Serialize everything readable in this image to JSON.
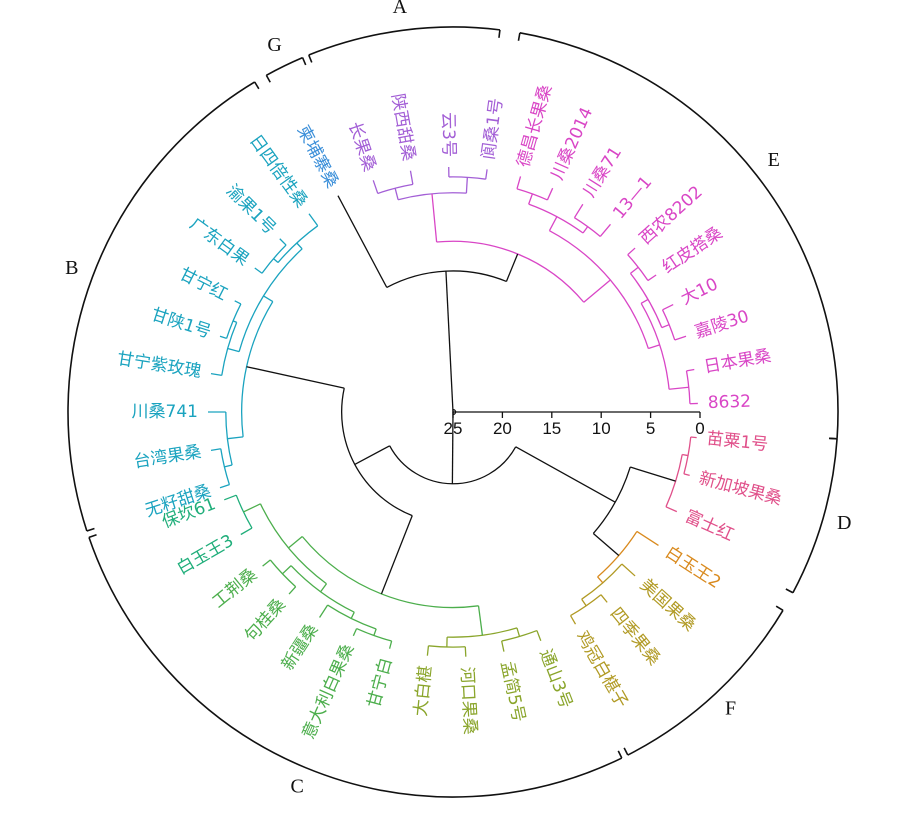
{
  "scale_axis": {
    "ticks": [
      "25",
      "20",
      "15",
      "10",
      "5",
      "0"
    ]
  },
  "groups": [
    {
      "key": "A",
      "label": "A"
    },
    {
      "key": "E",
      "label": "E"
    },
    {
      "key": "D",
      "label": "D"
    },
    {
      "key": "F",
      "label": "F"
    },
    {
      "key": "C",
      "label": "C"
    },
    {
      "key": "B",
      "label": "B"
    },
    {
      "key": "G",
      "label": "G"
    }
  ],
  "colors": {
    "A": "#a35fd6",
    "E": "#d946c6",
    "D": "#e0508a",
    "F_top": "#d98a1e",
    "F": "#b19a24",
    "C_olive": "#8aa52b",
    "C_green": "#4cae4c",
    "C_teal": "#1fae7a",
    "B": "#1aa3bf",
    "G": "#3b8fd9",
    "root": "#111111"
  },
  "leaves": [
    {
      "label": "8632",
      "color": "#d946c6"
    },
    {
      "label": "日本果桑",
      "color": "#d946c6"
    },
    {
      "label": "嘉陵30",
      "color": "#d946c6"
    },
    {
      "label": "大10",
      "color": "#d946c6"
    },
    {
      "label": "红皮搭桑",
      "color": "#d946c6"
    },
    {
      "label": "西农8202",
      "color": "#d946c6"
    },
    {
      "label": "13—1",
      "color": "#d946c6"
    },
    {
      "label": "川桑71",
      "color": "#d946c6"
    },
    {
      "label": "川桑2014",
      "color": "#d946c6"
    },
    {
      "label": "德昌长果桑",
      "color": "#d946c6"
    },
    {
      "label": "阆桑1号",
      "color": "#a35fd6"
    },
    {
      "label": "云3号",
      "color": "#a35fd6"
    },
    {
      "label": "陕西甜桑",
      "color": "#a35fd6"
    },
    {
      "label": "长果桑",
      "color": "#a35fd6"
    },
    {
      "label": "柬埔寨桑",
      "color": "#3b8fd9"
    },
    {
      "label": "日四倍性桑",
      "color": "#1aa3bf"
    },
    {
      "label": "渝果1号",
      "color": "#1aa3bf"
    },
    {
      "label": "广东白果",
      "color": "#1aa3bf"
    },
    {
      "label": "甘宁红",
      "color": "#1aa3bf"
    },
    {
      "label": "甘陕1号",
      "color": "#1aa3bf"
    },
    {
      "label": "甘宁紫玫瑰",
      "color": "#1aa3bf"
    },
    {
      "label": "川桑741",
      "color": "#1aa3bf"
    },
    {
      "label": "台湾果桑",
      "color": "#1aa3bf"
    },
    {
      "label": "无籽甜桑",
      "color": "#1aa3bf"
    },
    {
      "label": "保坎61",
      "color": "#1fae7a"
    },
    {
      "label": "白玉王3",
      "color": "#1fae7a"
    },
    {
      "label": "工荆桑",
      "color": "#4cae4c"
    },
    {
      "label": "句桂桑",
      "color": "#4cae4c"
    },
    {
      "label": "新疆桑",
      "color": "#4cae4c"
    },
    {
      "label": "意大利白果桑",
      "color": "#4cae4c"
    },
    {
      "label": "甘宁白",
      "color": "#4cae4c"
    },
    {
      "label": "大白椹",
      "color": "#8aa52b"
    },
    {
      "label": "河口果桑",
      "color": "#8aa52b"
    },
    {
      "label": "孟简5号",
      "color": "#8aa52b"
    },
    {
      "label": "通山3号",
      "color": "#8aa52b"
    },
    {
      "label": "鸡冠白椹子",
      "color": "#b19a24"
    },
    {
      "label": "四季果桑",
      "color": "#b19a24"
    },
    {
      "label": "美国果桑",
      "color": "#b19a24"
    },
    {
      "label": "白玉王2",
      "color": "#d98a1e"
    },
    {
      "label": "富士红",
      "color": "#e0508a"
    },
    {
      "label": "新加坡果桑",
      "color": "#e0508a"
    },
    {
      "label": "苗粟1号",
      "color": "#e0508a"
    }
  ]
}
